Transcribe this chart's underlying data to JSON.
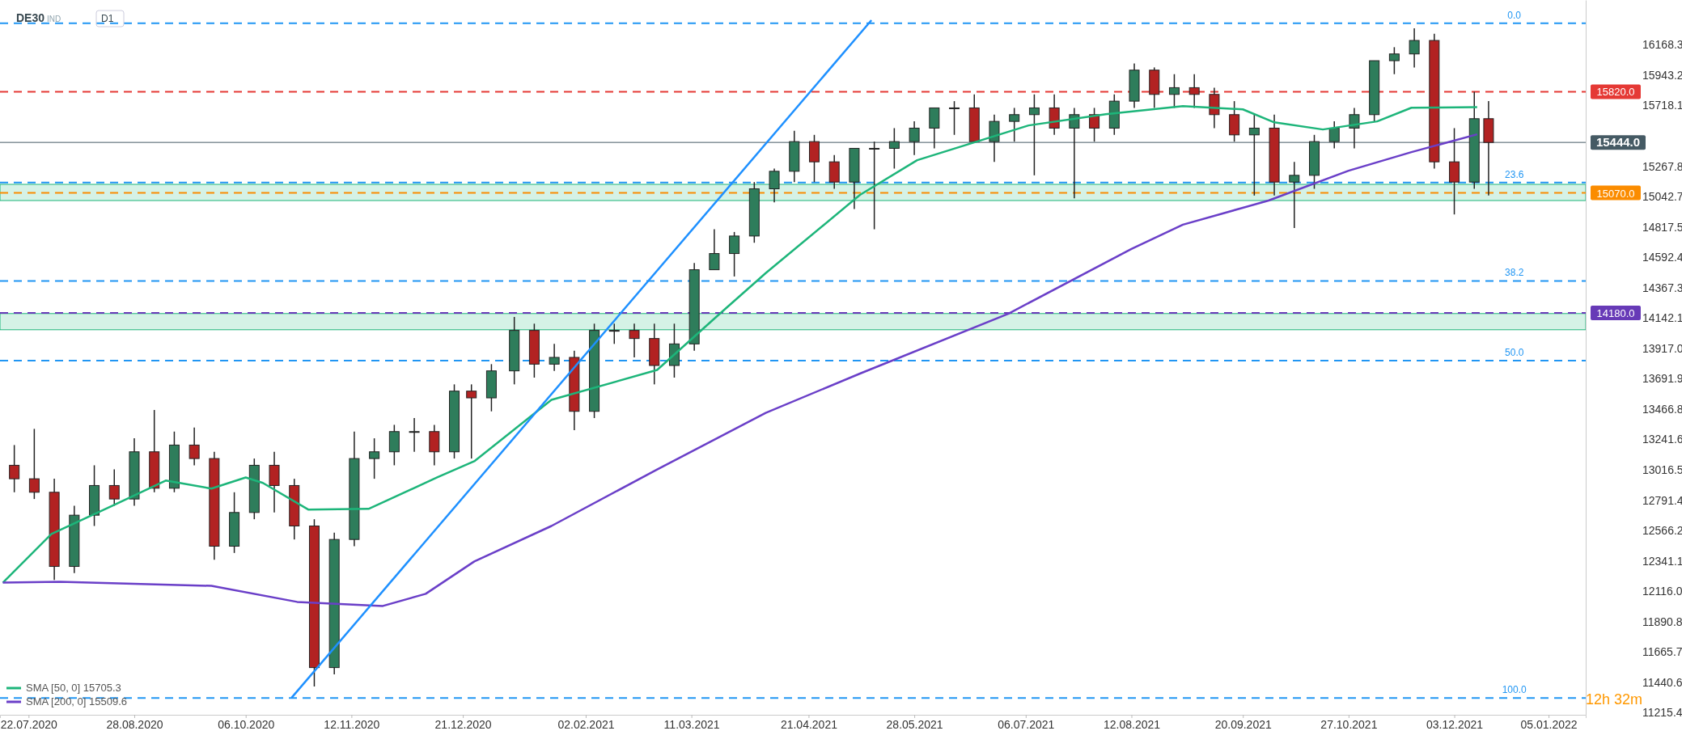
{
  "chart_data": {
    "type": "candlestick",
    "title": "DE30",
    "annotations": [
      "IND",
      "D1",
      "12h 32m",
      {
        "text": "0.0",
        "x": "2021-12-24",
        "y": 16328
      },
      {
        "text": "23.6",
        "x": "2021-12-24",
        "y": 15147
      },
      {
        "text": "38.2",
        "x": "2021-12-24",
        "y": 14417
      },
      {
        "text": "50.0",
        "x": "2021-12-24",
        "y": 13826
      },
      {
        "text": "100.0",
        "x": "2021-12-24",
        "y": 11325
      }
    ],
    "x": [
      "2020-07-17",
      "2020-07-24",
      "2020-07-31",
      "2020-08-07",
      "2020-08-14",
      "2020-08-21",
      "2020-08-28",
      "2020-09-04",
      "2020-09-11",
      "2020-09-18",
      "2020-09-25",
      "2020-10-02",
      "2020-10-09",
      "2020-10-16",
      "2020-10-23",
      "2020-10-30",
      "2020-11-06",
      "2020-11-13",
      "2020-11-20",
      "2020-11-27",
      "2020-12-04",
      "2020-12-11",
      "2020-12-18",
      "2020-12-24",
      "2020-12-31",
      "2021-01-08",
      "2021-01-15",
      "2021-01-22",
      "2021-01-29",
      "2021-02-05",
      "2021-02-12",
      "2021-02-19",
      "2021-02-26",
      "2021-03-05",
      "2021-03-12",
      "2021-03-19",
      "2021-03-26",
      "2021-04-02",
      "2021-04-09",
      "2021-04-16",
      "2021-04-23",
      "2021-04-30",
      "2021-05-07",
      "2021-05-14",
      "2021-05-21",
      "2021-05-28",
      "2021-06-04",
      "2021-06-11",
      "2021-06-18",
      "2021-06-25",
      "2021-07-02",
      "2021-07-09",
      "2021-07-16",
      "2021-07-23",
      "2021-07-30",
      "2021-08-06",
      "2021-08-13",
      "2021-08-20",
      "2021-08-27",
      "2021-09-03",
      "2021-09-10",
      "2021-09-17",
      "2021-09-24",
      "2021-10-01",
      "2021-10-08",
      "2021-10-15",
      "2021-10-22",
      "2021-10-29",
      "2021-11-05",
      "2021-11-12",
      "2021-11-19",
      "2021-11-26",
      "2021-12-03",
      "2021-12-10",
      "2021-12-15"
    ],
    "ohlc": [
      [
        13050,
        13200,
        12850,
        12950
      ],
      [
        12950,
        13320,
        12800,
        12850
      ],
      [
        12850,
        12950,
        12200,
        12300
      ],
      [
        12300,
        12750,
        12250,
        12680
      ],
      [
        12680,
        13050,
        12600,
        12900
      ],
      [
        12900,
        13020,
        12750,
        12800
      ],
      [
        12800,
        13250,
        12750,
        13150
      ],
      [
        13150,
        13460,
        12850,
        12880
      ],
      [
        12880,
        13300,
        12850,
        13200
      ],
      [
        13200,
        13330,
        13050,
        13100
      ],
      [
        13100,
        13150,
        12350,
        12450
      ],
      [
        12450,
        12850,
        12400,
        12700
      ],
      [
        12700,
        13100,
        12650,
        13050
      ],
      [
        13050,
        13150,
        12700,
        12900
      ],
      [
        12900,
        12950,
        12500,
        12600
      ],
      [
        12600,
        12650,
        11410,
        11550
      ],
      [
        11550,
        12550,
        11500,
        12500
      ],
      [
        12500,
        13300,
        12450,
        13100
      ],
      [
        13100,
        13250,
        12950,
        13150
      ],
      [
        13150,
        13350,
        13050,
        13300
      ],
      [
        13300,
        13400,
        13150,
        13300
      ],
      [
        13300,
        13350,
        13050,
        13150
      ],
      [
        13150,
        13650,
        13100,
        13600
      ],
      [
        13600,
        13650,
        13100,
        13550
      ],
      [
        13550,
        13800,
        13450,
        13750
      ],
      [
        13750,
        14150,
        13650,
        14050
      ],
      [
        14050,
        14100,
        13700,
        13800
      ],
      [
        13800,
        13950,
        13750,
        13850
      ],
      [
        13850,
        13900,
        13310,
        13450
      ],
      [
        13450,
        14100,
        13400,
        14050
      ],
      [
        14050,
        14100,
        13950,
        14050
      ],
      [
        14050,
        14100,
        13850,
        13990
      ],
      [
        13990,
        14100,
        13650,
        13790
      ],
      [
        13790,
        14100,
        13700,
        13950
      ],
      [
        13950,
        14550,
        13900,
        14500
      ],
      [
        14500,
        14800,
        14500,
        14620
      ],
      [
        14620,
        14780,
        14450,
        14750
      ],
      [
        14750,
        15150,
        14700,
        15100
      ],
      [
        15100,
        15250,
        15000,
        15230
      ],
      [
        15230,
        15530,
        15150,
        15450
      ],
      [
        15450,
        15500,
        15150,
        15300
      ],
      [
        15300,
        15350,
        15100,
        15150
      ],
      [
        15150,
        15400,
        14950,
        15400
      ],
      [
        15400,
        15450,
        14800,
        15400
      ],
      [
        15400,
        15550,
        15250,
        15450
      ],
      [
        15450,
        15600,
        15350,
        15550
      ],
      [
        15550,
        15700,
        15400,
        15700
      ],
      [
        15700,
        15750,
        15500,
        15700
      ],
      [
        15700,
        15800,
        15450,
        15450
      ],
      [
        15450,
        15650,
        15300,
        15600
      ],
      [
        15600,
        15700,
        15450,
        15650
      ],
      [
        15650,
        15800,
        15200,
        15700
      ],
      [
        15700,
        15800,
        15500,
        15550
      ],
      [
        15550,
        15700,
        15030,
        15650
      ],
      [
        15650,
        15700,
        15450,
        15550
      ],
      [
        15550,
        15800,
        15500,
        15750
      ],
      [
        15750,
        16030,
        15700,
        15980
      ],
      [
        15980,
        16000,
        15700,
        15800
      ],
      [
        15800,
        15950,
        15700,
        15850
      ],
      [
        15850,
        15950,
        15700,
        15800
      ],
      [
        15800,
        15850,
        15550,
        15650
      ],
      [
        15650,
        15750,
        15450,
        15500
      ],
      [
        15500,
        15650,
        15050,
        15550
      ],
      [
        15550,
        15650,
        15050,
        15150
      ],
      [
        15150,
        15300,
        14810,
        15200
      ],
      [
        15200,
        15500,
        15100,
        15450
      ],
      [
        15450,
        15600,
        15400,
        15550
      ],
      [
        15550,
        15700,
        15400,
        15650
      ],
      [
        15650,
        16050,
        15600,
        16050
      ],
      [
        16050,
        16150,
        15950,
        16100
      ],
      [
        16100,
        16290,
        16000,
        16200
      ],
      [
        16200,
        16250,
        15250,
        15300
      ],
      [
        15300,
        15550,
        14910,
        15150
      ],
      [
        15150,
        15820,
        15100,
        15620
      ],
      [
        15620,
        15750,
        15050,
        15444
      ]
    ],
    "colors": [
      "#b22222",
      "#b22222",
      "#b22222",
      "#2e7d5b",
      "#2e7d5b",
      "#b22222",
      "#2e7d5b",
      "#b22222",
      "#2e7d5b",
      "#b22222",
      "#b22222",
      "#2e7d5b",
      "#2e7d5b",
      "#b22222",
      "#b22222",
      "#b22222",
      "#2e7d5b",
      "#2e7d5b",
      "#2e7d5b",
      "#2e7d5b",
      "#2e7d5b",
      "#b22222",
      "#2e7d5b",
      "#b22222",
      "#2e7d5b",
      "#2e7d5b",
      "#b22222",
      "#2e7d5b",
      "#b22222",
      "#2e7d5b",
      "#2e7d5b",
      "#b22222",
      "#b22222",
      "#2e7d5b",
      "#2e7d5b",
      "#2e7d5b",
      "#2e7d5b",
      "#2e7d5b",
      "#2e7d5b",
      "#2e7d5b",
      "#b22222",
      "#b22222",
      "#2e7d5b",
      "#2e7d5b",
      "#2e7d5b",
      "#2e7d5b",
      "#2e7d5b",
      "#2e7d5b",
      "#b22222",
      "#2e7d5b",
      "#2e7d5b",
      "#2e7d5b",
      "#b22222",
      "#2e7d5b",
      "#b22222",
      "#2e7d5b",
      "#2e7d5b",
      "#b22222",
      "#2e7d5b",
      "#b22222",
      "#b22222",
      "#b22222",
      "#2e7d5b",
      "#b22222",
      "#2e7d5b",
      "#2e7d5b",
      "#2e7d5b",
      "#2e7d5b",
      "#2e7d5b",
      "#2e7d5b",
      "#2e7d5b",
      "#b22222",
      "#b22222",
      "#2e7d5b",
      "#b22222"
    ],
    "series": [
      {
        "name": "SMA [50, 0] 15705.3",
        "type": "line",
        "color": "#1db57a",
        "x": [
          "2020-07-13",
          "2020-07-30",
          "2020-08-21",
          "2020-09-08",
          "2020-09-24",
          "2020-10-06",
          "2020-10-12",
          "2020-10-28",
          "2020-11-18",
          "2020-12-12",
          "2020-12-25",
          "2021-01-21",
          "2021-02-27",
          "2021-03-21",
          "2021-04-06",
          "2021-05-09",
          "2021-05-29",
          "2021-07-07",
          "2021-08-03",
          "2021-08-30",
          "2021-09-20",
          "2021-10-01",
          "2021-10-18",
          "2021-11-06",
          "2021-11-18",
          "2021-12-11"
        ],
        "values": [
          12180,
          12541,
          12757,
          12937,
          12877,
          12960,
          12919,
          12721,
          12727,
          12960,
          13080,
          13535,
          13757,
          14175,
          14475,
          15055,
          15312,
          15570,
          15653,
          15713,
          15689,
          15593,
          15540,
          15600,
          15701,
          15705
        ]
      },
      {
        "name": "SMA [200, 0] 15509.6",
        "type": "line",
        "color": "#6a3fc8",
        "x": [
          "2020-07-13",
          "2020-08-02",
          "2020-09-24",
          "2020-10-24",
          "2020-11-23",
          "2020-12-08",
          "2020-12-25",
          "2021-01-21",
          "2021-02-27",
          "2021-04-06",
          "2021-05-09",
          "2021-06-30",
          "2021-08-12",
          "2021-08-30",
          "2021-09-29",
          "2021-10-27",
          "2021-11-18",
          "2021-12-11"
        ],
        "values": [
          12180,
          12186,
          12156,
          12037,
          12007,
          12097,
          12337,
          12600,
          13019,
          13439,
          13730,
          14175,
          14654,
          14834,
          15013,
          15234,
          15372,
          15504
        ]
      },
      {
        "type": "line",
        "color": "#1e90ff",
        "x": [
          "2020-10-22",
          "2021-05-13"
        ],
        "values": [
          11325,
          16350
        ]
      }
    ],
    "xlim": [
      "2020-07-12",
      "2022-01-18"
    ],
    "xticks": [
      {
        "value": "2020-07-22",
        "label": "22.07.2020"
      },
      {
        "value": "2020-08-28",
        "label": "28.08.2020"
      },
      {
        "value": "2020-10-06",
        "label": "06.10.2020"
      },
      {
        "value": "2020-11-12",
        "label": "12.11.2020"
      },
      {
        "value": "2020-12-21",
        "label": "21.12.2020"
      },
      {
        "value": "2021-02-02",
        "label": "02.02.2021"
      },
      {
        "value": "2021-03-11",
        "label": "11.03.2021"
      },
      {
        "value": "2021-04-21",
        "label": "21.04.2021"
      },
      {
        "value": "2021-05-28",
        "label": "28.05.2021"
      },
      {
        "value": "2021-07-06",
        "label": "06.07.2021"
      },
      {
        "value": "2021-08-12",
        "label": "12.08.2021"
      },
      {
        "value": "2021-09-20",
        "label": "20.09.2021"
      },
      {
        "value": "2021-10-27",
        "label": "27.10.2021"
      },
      {
        "value": "2021-12-03",
        "label": "03.12.2021"
      },
      {
        "value": "2022-01-05",
        "label": "05.01.2022"
      }
    ],
    "ylim": [
      11200,
      16500
    ],
    "yticks": [
      {
        "value": 11215.4,
        "label": "11215.4"
      },
      {
        "value": 11440.6,
        "label": "11440.6"
      },
      {
        "value": 11665.7,
        "label": "11665.7"
      },
      {
        "value": 11890.8,
        "label": "11890.8"
      },
      {
        "value": 12116,
        "label": "12116.0"
      },
      {
        "value": 12341.1,
        "label": "12341.1"
      },
      {
        "value": 12566.2,
        "label": "12566.2"
      },
      {
        "value": 12791.4,
        "label": "12791.4"
      },
      {
        "value": 13016.5,
        "label": "13016.5"
      },
      {
        "value": 13241.6,
        "label": "13241.6"
      },
      {
        "value": 13466.8,
        "label": "13466.8"
      },
      {
        "value": 13691.9,
        "label": "13691.9"
      },
      {
        "value": 13917,
        "label": "13917.0"
      },
      {
        "value": 14142.1,
        "label": "14142.1"
      },
      {
        "value": 14367.3,
        "label": "14367.3"
      },
      {
        "value": 14592.4,
        "label": "14592.4"
      },
      {
        "value": 14817.5,
        "label": "14817.5"
      },
      {
        "value": 15042.7,
        "label": "15042.7"
      },
      {
        "value": 15267.8,
        "label": "15267.8"
      },
      {
        "value": 15718.1,
        "label": "15718.1"
      },
      {
        "value": 15943.2,
        "label": "15943.2"
      },
      {
        "value": 16168.3,
        "label": "16168.3"
      }
    ],
    "ref_lines": [
      {
        "axis": "y",
        "value": 16328,
        "color": "#2196f3",
        "line_style": "dashed"
      },
      {
        "axis": "y",
        "value": 15147,
        "color": "#2196f3",
        "line_style": "dashed"
      },
      {
        "axis": "y",
        "value": 14417,
        "color": "#2196f3",
        "line_style": "dashed"
      },
      {
        "axis": "y",
        "value": 13826,
        "color": "#2196f3",
        "line_style": "dashed"
      },
      {
        "axis": "y",
        "value": 11325,
        "color": "#2196f3",
        "line_style": "dashed"
      },
      {
        "axis": "y",
        "value": 15820,
        "label": "15820.0",
        "color": "#e53935",
        "line_style": "dashed"
      },
      {
        "axis": "y",
        "value": 15070,
        "label": "15070.0",
        "color": "#fb8c00",
        "line_style": "dashed"
      },
      {
        "axis": "y",
        "value": 14180,
        "label": "14180.0",
        "color": "#673ab7",
        "line_style": "dashed"
      },
      {
        "axis": "y",
        "value": 15444,
        "label": "15444.0",
        "color": "#455a64",
        "line_style": "solid"
      }
    ],
    "bands": [
      {
        "axis": "y",
        "from": 15013,
        "to": 15133,
        "color": "#d5f2e6"
      },
      {
        "axis": "y",
        "from": 14055,
        "to": 14175,
        "color": "#d5f2e6"
      }
    ],
    "legend": "bottom left",
    "grid": false
  }
}
